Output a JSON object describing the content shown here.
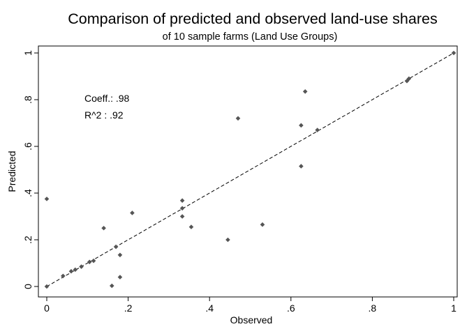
{
  "chart_data": {
    "type": "scatter",
    "title": "Comparison of predicted and observed land-use shares",
    "subtitle": "of 10 sample farms (Land Use Groups)",
    "xlabel": "Observed",
    "ylabel": "Predicted",
    "xlim": [
      0,
      1
    ],
    "ylim": [
      0,
      1
    ],
    "xticks": [
      {
        "value": 0,
        "label": "0"
      },
      {
        "value": 0.2,
        "label": ".2"
      },
      {
        "value": 0.4,
        "label": ".4"
      },
      {
        "value": 0.6,
        "label": ".6"
      },
      {
        "value": 0.8,
        "label": ".8"
      },
      {
        "value": 1,
        "label": "1"
      }
    ],
    "yticks": [
      {
        "value": 0,
        "label": "0"
      },
      {
        "value": 0.2,
        "label": ".2"
      },
      {
        "value": 0.4,
        "label": ".4"
      },
      {
        "value": 0.6,
        "label": ".6"
      },
      {
        "value": 0.8,
        "label": ".8"
      },
      {
        "value": 1,
        "label": "1"
      }
    ],
    "grid": false,
    "annotations": [
      "Coeff.: .98",
      "R^2 : .92"
    ],
    "fit_line": {
      "style": "dashed",
      "start": [
        0,
        0
      ],
      "end": [
        1,
        1
      ]
    },
    "marker_color": "#555555",
    "points": [
      {
        "x": 0.0,
        "y": 0.0
      },
      {
        "x": 0.0,
        "y": 0.375
      },
      {
        "x": 0.04,
        "y": 0.045
      },
      {
        "x": 0.06,
        "y": 0.065
      },
      {
        "x": 0.07,
        "y": 0.072
      },
      {
        "x": 0.085,
        "y": 0.085
      },
      {
        "x": 0.105,
        "y": 0.105
      },
      {
        "x": 0.115,
        "y": 0.11
      },
      {
        "x": 0.14,
        "y": 0.25
      },
      {
        "x": 0.16,
        "y": 0.003
      },
      {
        "x": 0.17,
        "y": 0.17
      },
      {
        "x": 0.18,
        "y": 0.135
      },
      {
        "x": 0.18,
        "y": 0.04
      },
      {
        "x": 0.21,
        "y": 0.315
      },
      {
        "x": 0.333,
        "y": 0.368
      },
      {
        "x": 0.333,
        "y": 0.335
      },
      {
        "x": 0.333,
        "y": 0.3
      },
      {
        "x": 0.355,
        "y": 0.255
      },
      {
        "x": 0.445,
        "y": 0.2
      },
      {
        "x": 0.47,
        "y": 0.72
      },
      {
        "x": 0.53,
        "y": 0.265
      },
      {
        "x": 0.625,
        "y": 0.69
      },
      {
        "x": 0.625,
        "y": 0.515
      },
      {
        "x": 0.635,
        "y": 0.835
      },
      {
        "x": 0.665,
        "y": 0.67
      },
      {
        "x": 0.885,
        "y": 0.88
      },
      {
        "x": 0.89,
        "y": 0.89
      },
      {
        "x": 1.0,
        "y": 1.0
      }
    ]
  }
}
